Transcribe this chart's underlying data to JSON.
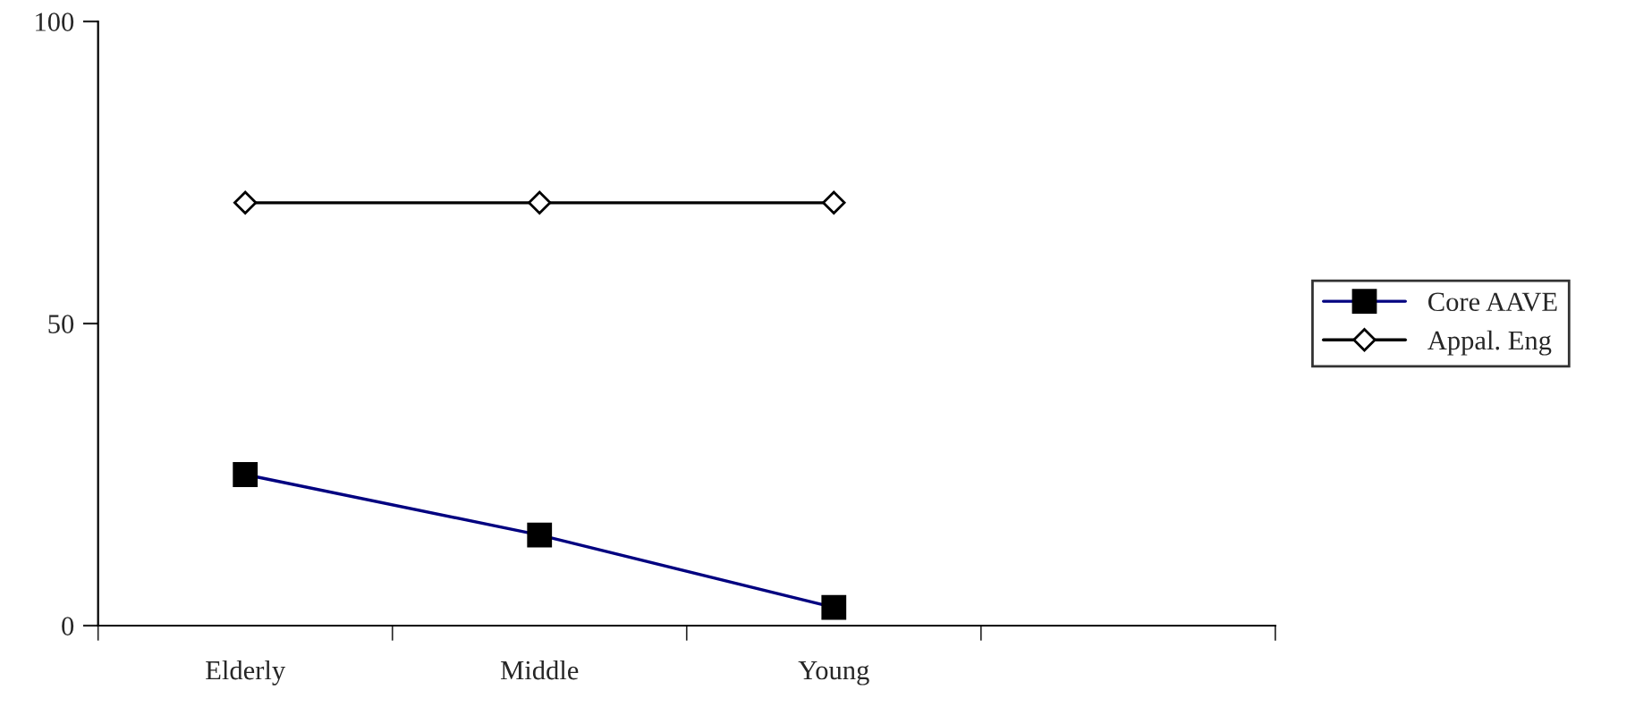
{
  "chart_data": {
    "type": "line",
    "categories": [
      "Elderly",
      "Middle",
      "Young",
      null
    ],
    "series": [
      {
        "name": "Core AAVE",
        "color": "#000080",
        "marker": "square",
        "values": [
          25,
          15,
          3,
          null
        ]
      },
      {
        "name": "Appal. Eng",
        "color": "#000000",
        "marker": "diamond",
        "values": [
          70,
          70,
          70,
          null
        ]
      }
    ],
    "ylim": [
      0,
      100
    ],
    "yticks": [
      0,
      50,
      100
    ],
    "grid": false,
    "legend": "right"
  }
}
